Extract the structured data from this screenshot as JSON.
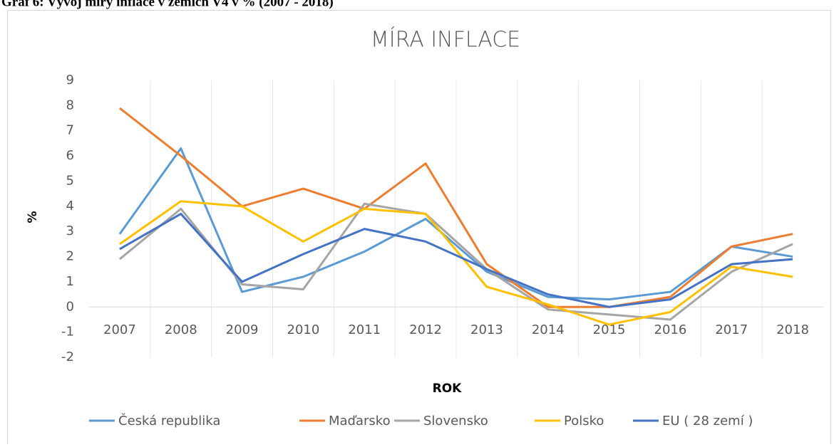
{
  "caption": "Graf 6: Vývoj míry inflace v zemích V4 v % (2007 - 2018)",
  "chart_data": {
    "type": "line",
    "title": "MÍRA INFLACE",
    "x_label": "ROK",
    "y_label": "%",
    "categories": [
      "2007",
      "2008",
      "2009",
      "2010",
      "2011",
      "2012",
      "2013",
      "2014",
      "2015",
      "2016",
      "2017",
      "2018"
    ],
    "series": [
      {
        "name": "Česká republika",
        "color": "#5B9BD5",
        "values": [
          2.9,
          6.3,
          0.6,
          1.2,
          2.2,
          3.5,
          1.4,
          0.4,
          0.3,
          0.6,
          2.4,
          2.0
        ]
      },
      {
        "name": "Maďarsko",
        "color": "#ED7D31",
        "values": [
          7.9,
          6.0,
          4.0,
          4.7,
          3.9,
          5.7,
          1.7,
          0.0,
          0.0,
          0.4,
          2.4,
          2.9
        ]
      },
      {
        "name": "Slovensko",
        "color": "#A5A5A5",
        "values": [
          1.9,
          3.9,
          0.9,
          0.7,
          4.1,
          3.7,
          1.5,
          -0.1,
          -0.3,
          -0.5,
          1.4,
          2.5
        ]
      },
      {
        "name": "Polsko",
        "color": "#FFC000",
        "values": [
          2.5,
          4.2,
          4.0,
          2.6,
          3.9,
          3.7,
          0.8,
          0.1,
          -0.7,
          -0.2,
          1.6,
          1.2
        ]
      },
      {
        "name": "EU ( 28 zemí )",
        "color": "#4472C4",
        "values": [
          2.3,
          3.7,
          1.0,
          2.1,
          3.1,
          2.6,
          1.5,
          0.5,
          0.0,
          0.3,
          1.7,
          1.9
        ]
      }
    ],
    "ylim": [
      -2,
      9
    ],
    "yticks": [
      -2,
      -1,
      0,
      1,
      2,
      3,
      4,
      5,
      6,
      7,
      8,
      9
    ],
    "grid": {
      "x": true,
      "y": false
    },
    "legend": "bottom"
  }
}
